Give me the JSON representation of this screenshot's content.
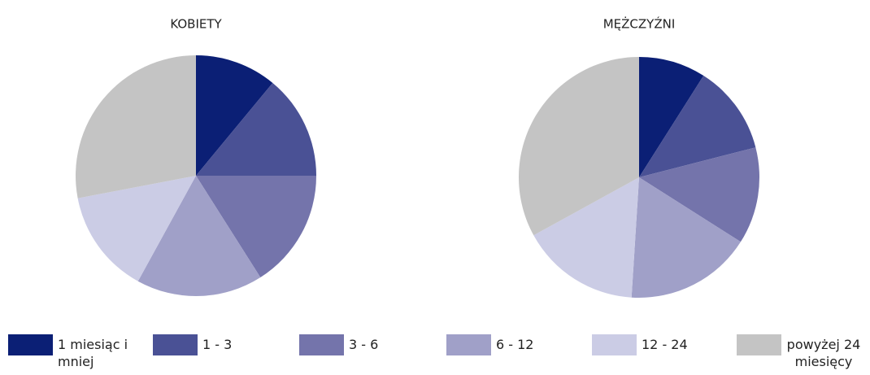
{
  "chart_data": [
    {
      "type": "pie",
      "title": "KOBIETY",
      "values": [
        11,
        14,
        16,
        17,
        14,
        28
      ]
    },
    {
      "type": "pie",
      "title": "MĘŻCZYŹNI",
      "values": [
        9,
        12,
        13,
        17,
        16,
        33
      ]
    }
  ],
  "legend": {
    "labels": [
      "1 miesiąc i mniej",
      "1 - 3",
      "3 - 6",
      "6 - 12",
      "12 - 24",
      "powyżej 24 miesięcy"
    ],
    "colors": [
      "#0b1f75",
      "#4a5195",
      "#7474ab",
      "#a0a0c8",
      "#cbcce5",
      "#c4c4c4"
    ]
  }
}
